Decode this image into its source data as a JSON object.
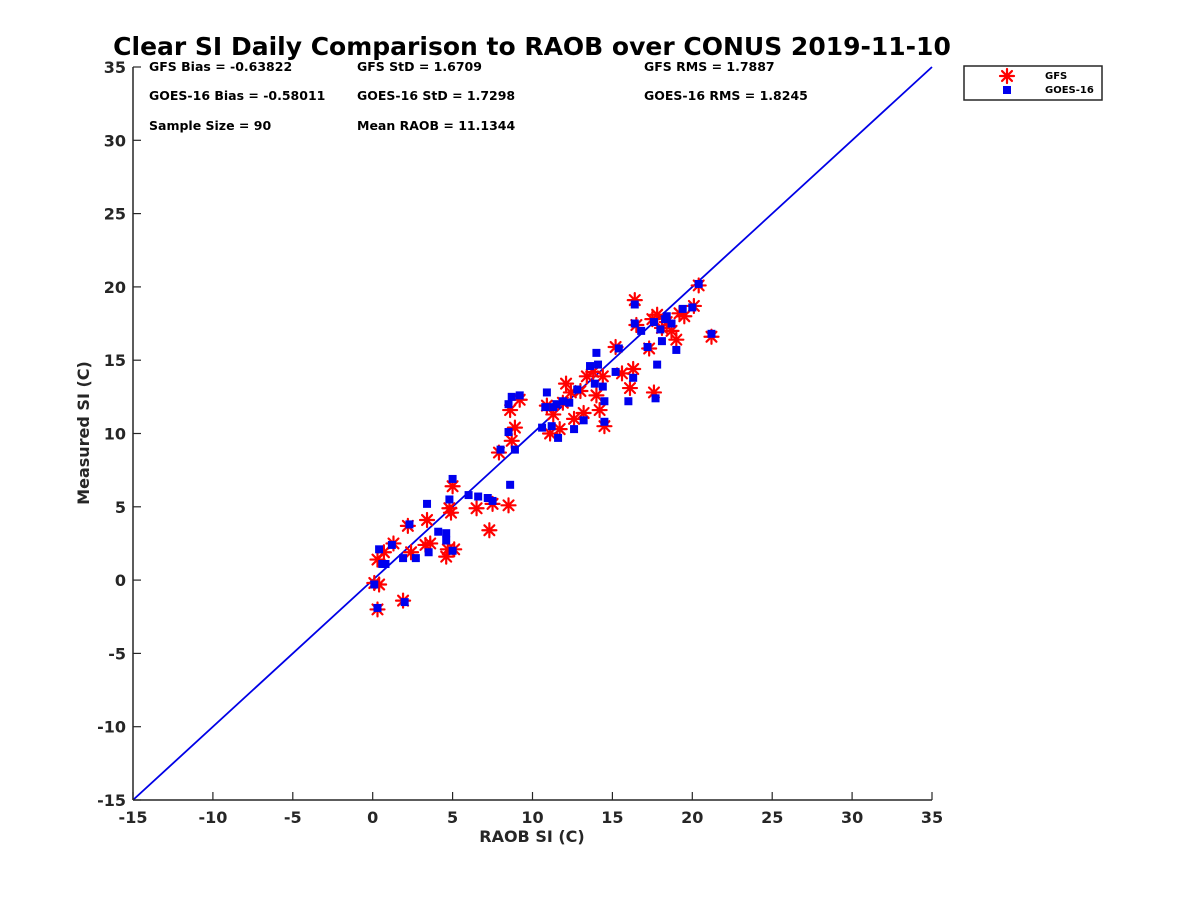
{
  "chart_data": {
    "type": "scatter",
    "title": "Clear SI Daily Comparison to RAOB over CONUS 2019-11-10",
    "xlabel": "RAOB SI (C)",
    "ylabel": "Measured SI (C)",
    "xlim": [
      -15,
      35
    ],
    "ylim": [
      -15,
      35
    ],
    "xticks": [
      "-15",
      "-10",
      "-5",
      "0",
      "5",
      "10",
      "15",
      "20",
      "25",
      "30",
      "35"
    ],
    "yticks": [
      "-15",
      "-10",
      "-5",
      "0",
      "5",
      "10",
      "15",
      "20",
      "25",
      "30",
      "35"
    ],
    "grid": false,
    "legend_position": "outside-top-right",
    "reference_line": {
      "x": [
        -15,
        35
      ],
      "y": [
        -15,
        35
      ],
      "color": "#0000e6"
    },
    "stats": [
      "GFS Bias = -0.63822",
      "GFS StD = 1.6709",
      "GFS RMS = 1.7887",
      "GOES-16 Bias = -0.58011",
      "GOES-16 StD = 1.7298",
      "GOES-16 RMS = 1.8245",
      "Sample Size = 90",
      "Mean RAOB = 11.1344"
    ],
    "series": [
      {
        "name": "GFS",
        "marker": "asterisk",
        "color": "#ff0000",
        "points": [
          [
            0.1,
            -0.2
          ],
          [
            0.3,
            -2.0
          ],
          [
            0.3,
            1.4
          ],
          [
            0.4,
            -0.3
          ],
          [
            0.7,
            1.9
          ],
          [
            1.3,
            2.5
          ],
          [
            1.9,
            -1.4
          ],
          [
            2.2,
            3.7
          ],
          [
            2.4,
            1.9
          ],
          [
            3.3,
            2.4
          ],
          [
            3.4,
            4.1
          ],
          [
            3.6,
            2.5
          ],
          [
            4.6,
            1.6
          ],
          [
            4.7,
            2.1
          ],
          [
            4.8,
            4.9
          ],
          [
            4.9,
            4.6
          ],
          [
            5.0,
            6.4
          ],
          [
            5.1,
            2.1
          ],
          [
            6.5,
            4.9
          ],
          [
            7.3,
            3.4
          ],
          [
            7.5,
            5.2
          ],
          [
            7.9,
            8.7
          ],
          [
            8.5,
            5.1
          ],
          [
            8.6,
            11.6
          ],
          [
            8.7,
            9.5
          ],
          [
            8.9,
            10.4
          ],
          [
            9.2,
            12.3
          ],
          [
            10.9,
            11.9
          ],
          [
            11.1,
            10.0
          ],
          [
            11.3,
            11.3
          ],
          [
            11.7,
            10.3
          ],
          [
            11.9,
            12.1
          ],
          [
            12.1,
            13.4
          ],
          [
            12.4,
            12.8
          ],
          [
            12.6,
            11.0
          ],
          [
            13.0,
            12.9
          ],
          [
            13.2,
            11.4
          ],
          [
            13.4,
            13.9
          ],
          [
            13.8,
            14.2
          ],
          [
            14.0,
            12.6
          ],
          [
            14.2,
            11.6
          ],
          [
            14.4,
            13.9
          ],
          [
            14.5,
            10.5
          ],
          [
            15.2,
            15.9
          ],
          [
            15.6,
            14.1
          ],
          [
            16.1,
            13.1
          ],
          [
            16.3,
            14.4
          ],
          [
            16.4,
            19.1
          ],
          [
            16.5,
            17.4
          ],
          [
            17.3,
            15.8
          ],
          [
            17.5,
            17.8
          ],
          [
            17.6,
            12.8
          ],
          [
            17.8,
            18.1
          ],
          [
            18.1,
            17.2
          ],
          [
            18.4,
            17.6
          ],
          [
            18.7,
            17.0
          ],
          [
            19.0,
            16.4
          ],
          [
            19.2,
            18.2
          ],
          [
            19.5,
            18.0
          ],
          [
            20.1,
            18.7
          ],
          [
            20.4,
            20.1
          ],
          [
            21.2,
            16.6
          ]
        ]
      },
      {
        "name": "GOES-16",
        "marker": "square",
        "color": "#0000ee",
        "points": [
          [
            0.1,
            -0.3
          ],
          [
            0.3,
            -1.9
          ],
          [
            0.4,
            2.1
          ],
          [
            0.6,
            1.1
          ],
          [
            0.8,
            1.1
          ],
          [
            1.2,
            2.4
          ],
          [
            1.9,
            1.5
          ],
          [
            2.0,
            -1.5
          ],
          [
            2.3,
            3.8
          ],
          [
            2.7,
            1.5
          ],
          [
            3.4,
            5.2
          ],
          [
            3.5,
            1.9
          ],
          [
            4.1,
            3.3
          ],
          [
            4.6,
            3.2
          ],
          [
            4.6,
            2.7
          ],
          [
            4.8,
            5.5
          ],
          [
            5.0,
            6.9
          ],
          [
            5.0,
            2.0
          ],
          [
            6.0,
            5.8
          ],
          [
            6.6,
            5.7
          ],
          [
            7.2,
            5.6
          ],
          [
            7.5,
            5.4
          ],
          [
            8.0,
            8.9
          ],
          [
            8.5,
            10.1
          ],
          [
            8.5,
            12.0
          ],
          [
            8.6,
            6.5
          ],
          [
            8.7,
            12.5
          ],
          [
            8.9,
            8.9
          ],
          [
            9.2,
            12.6
          ],
          [
            10.6,
            10.4
          ],
          [
            10.8,
            11.8
          ],
          [
            10.9,
            12.8
          ],
          [
            11.2,
            10.5
          ],
          [
            11.3,
            11.8
          ],
          [
            11.5,
            12.0
          ],
          [
            11.6,
            9.7
          ],
          [
            11.9,
            12.2
          ],
          [
            12.3,
            12.1
          ],
          [
            12.6,
            10.3
          ],
          [
            12.8,
            13.0
          ],
          [
            13.2,
            10.9
          ],
          [
            13.6,
            14.6
          ],
          [
            13.9,
            13.4
          ],
          [
            14.0,
            15.5
          ],
          [
            14.1,
            14.7
          ],
          [
            14.4,
            13.2
          ],
          [
            14.5,
            12.2
          ],
          [
            14.5,
            10.8
          ],
          [
            15.2,
            14.2
          ],
          [
            15.4,
            15.8
          ],
          [
            16.0,
            12.2
          ],
          [
            16.3,
            13.8
          ],
          [
            16.4,
            17.5
          ],
          [
            16.4,
            18.8
          ],
          [
            16.8,
            17.0
          ],
          [
            17.2,
            15.9
          ],
          [
            17.6,
            17.6
          ],
          [
            17.7,
            12.4
          ],
          [
            17.8,
            14.7
          ],
          [
            18.0,
            17.1
          ],
          [
            18.1,
            16.3
          ],
          [
            18.3,
            17.8
          ],
          [
            18.4,
            18.0
          ],
          [
            18.7,
            17.5
          ],
          [
            19.0,
            15.7
          ],
          [
            19.4,
            18.5
          ],
          [
            20.0,
            18.6
          ],
          [
            20.4,
            20.2
          ],
          [
            21.2,
            16.8
          ]
        ]
      }
    ]
  }
}
